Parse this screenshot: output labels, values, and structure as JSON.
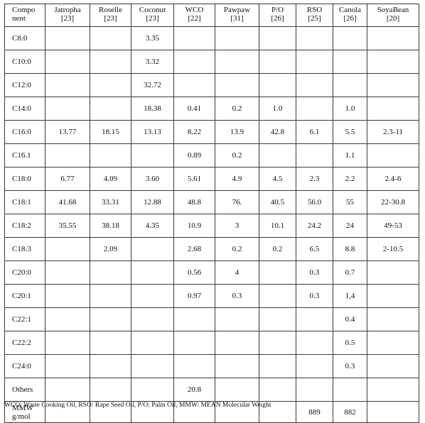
{
  "table": {
    "headers": [
      {
        "line1": "Compo",
        "line2": "nent"
      },
      {
        "line1": "Jatropha",
        "line2": "[23]"
      },
      {
        "line1": "Roselle",
        "line2": "[23]"
      },
      {
        "line1": "Coconut",
        "line2": "[23]"
      },
      {
        "line1": "WCO",
        "line2": "[22]"
      },
      {
        "line1": "Pawpaw",
        "line2": "[31]"
      },
      {
        "line1": "P/O",
        "line2": "[26]"
      },
      {
        "line1": "RSO",
        "line2": "[25]"
      },
      {
        "line1": "Canola",
        "line2": "[26]"
      },
      {
        "line1": "SoyaBean",
        "line2": "[20]"
      }
    ],
    "rows": [
      [
        "C8:0",
        "",
        "",
        "3.35",
        "",
        "",
        "",
        "",
        "",
        ""
      ],
      [
        "C10:0",
        "",
        "",
        "3.32",
        "",
        "",
        "",
        "",
        "",
        ""
      ],
      [
        "C12:0",
        "",
        "",
        "32.72",
        "",
        "",
        "",
        "",
        "",
        ""
      ],
      [
        "C14:0",
        "",
        "",
        "18.38",
        "0.41",
        "0.2",
        "1.0",
        "",
        "1.0",
        ""
      ],
      [
        "C16:0",
        "13.77",
        "18.15",
        "13.13",
        "8.22",
        "13.9",
        "42.8",
        "6.1",
        "5.5",
        "2.3-11"
      ],
      [
        "C16.1",
        "",
        "",
        "",
        "0.89",
        "0.2",
        "",
        "",
        "1.1",
        ""
      ],
      [
        "C18:0",
        "6.77",
        "4.09",
        "3.60",
        "5.61",
        "4.9",
        "4.5",
        "2.3",
        "2.2",
        "2.4-6"
      ],
      [
        "C18:1",
        "41.68",
        "33.31",
        "12.88",
        "48.8",
        "76.",
        "40.5",
        "56.0",
        "55",
        "22-30.8"
      ],
      [
        "C18:2",
        "35.55",
        "38.18",
        "4.35",
        "10.9",
        "3",
        "10.1",
        "24.2",
        "24",
        "49-53"
      ],
      [
        "C18:3",
        "",
        "2.09",
        "",
        "2.68",
        "0.2",
        "0.2",
        "6.5",
        "8.8",
        "2-10.5"
      ],
      [
        "C20:0",
        "",
        "",
        "",
        "0.56",
        "4",
        "",
        "0.3",
        "0.7",
        ""
      ],
      [
        "C20:1",
        "",
        "",
        "",
        "0.97",
        "0.3",
        "",
        "0.3",
        "1,4",
        ""
      ],
      [
        "C22:1",
        "",
        "",
        "",
        "",
        "",
        "",
        "",
        "0.4",
        ""
      ],
      [
        "C22:2",
        "",
        "",
        "",
        "",
        "",
        "",
        "",
        "0.5",
        ""
      ],
      [
        "C24:0",
        "",
        "",
        "",
        "",
        "",
        "",
        "",
        "0.3",
        ""
      ],
      [
        "Others",
        "",
        "",
        "",
        "20.8",
        "",
        "",
        "",
        "",
        ""
      ]
    ],
    "mmw_row": {
      "label_line1": "MMW",
      "label_line2": "g/mol",
      "values": [
        "",
        "",
        "",
        "",
        "",
        "",
        "889",
        "882",
        ""
      ]
    }
  },
  "caption": "WCO: Waste Cooking Oil, RSO: Rape Seed Oil, P/O: Palm Oil, MMW: MEAN Molecular Weight"
}
